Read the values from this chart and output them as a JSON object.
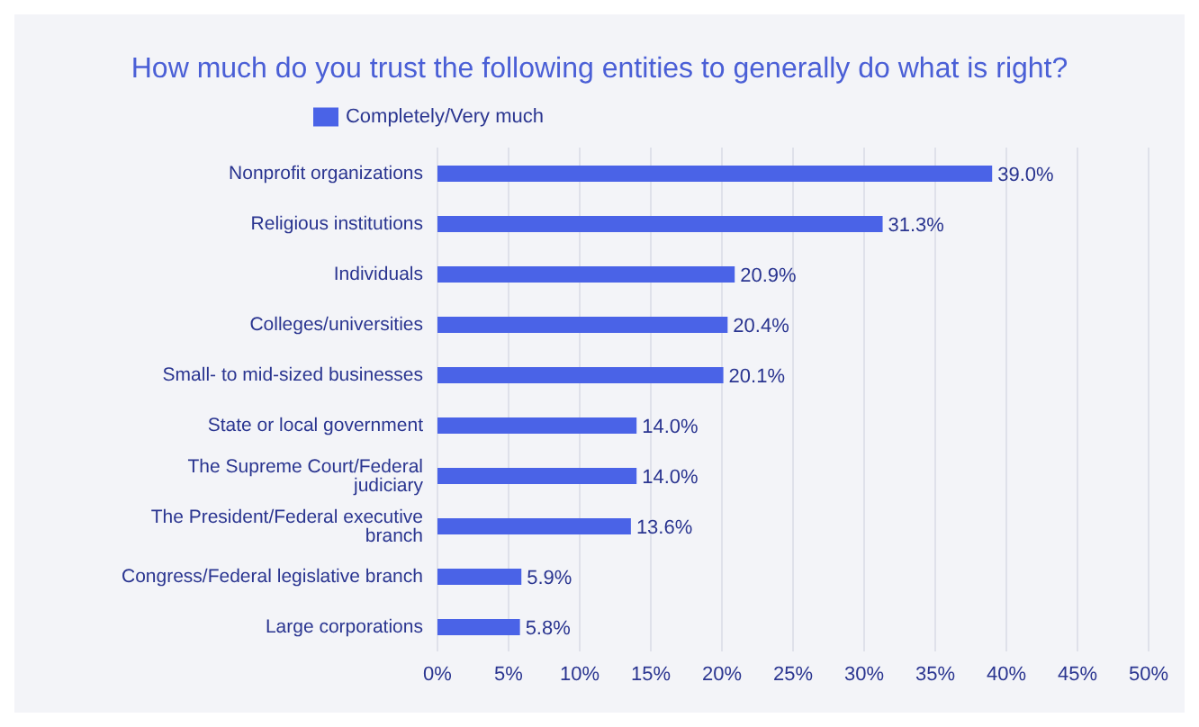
{
  "chart_data": {
    "type": "bar",
    "orientation": "horizontal",
    "title": "How much do you trust the following entities to generally do what is right?",
    "categories": [
      "Nonprofit organizations",
      "Religious institutions",
      "Individuals",
      "Colleges/universities",
      "Small- to mid-sized businesses",
      "State or local government",
      "The Supreme Court/Federal judiciary",
      "The President/Federal executive branch",
      "Congress/Federal legislative branch",
      "Large corporations"
    ],
    "series": [
      {
        "name": "Completely/Very much",
        "color": "#4a63e7",
        "values": [
          39.0,
          31.3,
          20.9,
          20.4,
          20.1,
          14.0,
          14.0,
          13.6,
          5.9,
          5.8
        ],
        "value_labels": [
          "39.0%",
          "31.3%",
          "20.9%",
          "20.4%",
          "20.1%",
          "14.0%",
          "14.0%",
          "13.6%",
          "5.9%",
          "5.8%"
        ]
      }
    ],
    "xlim": [
      0,
      50
    ],
    "xticks": [
      {
        "value": 0,
        "label": "0%"
      },
      {
        "value": 5,
        "label": "5%"
      },
      {
        "value": 10,
        "label": "10%"
      },
      {
        "value": 15,
        "label": "15%"
      },
      {
        "value": 20,
        "label": "20%"
      },
      {
        "value": 25,
        "label": "25%"
      },
      {
        "value": 30,
        "label": "30%"
      },
      {
        "value": 35,
        "label": "35%"
      },
      {
        "value": 40,
        "label": "40%"
      },
      {
        "value": 45,
        "label": "45%"
      },
      {
        "value": 50,
        "label": "50%"
      }
    ],
    "grid": "x",
    "legend": "top"
  }
}
